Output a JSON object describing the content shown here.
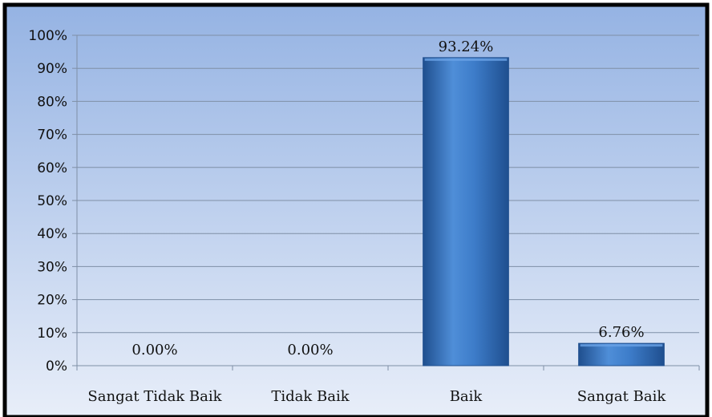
{
  "chart_data": {
    "type": "bar",
    "title": "",
    "xlabel": "",
    "ylabel": "",
    "categories": [
      "Sangat Tidak Baik",
      "Tidak Baik",
      "Baik",
      "Sangat Baik"
    ],
    "values": [
      0.0,
      0.0,
      93.24,
      6.76
    ],
    "data_labels": [
      "0.00%",
      "0.00%",
      "93.24%",
      "6.76%"
    ],
    "ylim": [
      0,
      100
    ],
    "yticks": [
      0,
      10,
      20,
      30,
      40,
      50,
      60,
      70,
      80,
      90,
      100
    ],
    "ytick_labels": [
      "0%",
      "10%",
      "20%",
      "30%",
      "40%",
      "50%",
      "60%",
      "70%",
      "80%",
      "90%",
      "100%"
    ],
    "grid": true,
    "legend": "none",
    "colors": {
      "bar": "#3d7cc9",
      "bar_dark": "#1f4f8f",
      "bar_light": "#6aa3e6",
      "background_top": "#95b3e3",
      "background_bottom": "#e8eef9",
      "gridline": "#7f8fa6",
      "frame": "#000000"
    }
  }
}
